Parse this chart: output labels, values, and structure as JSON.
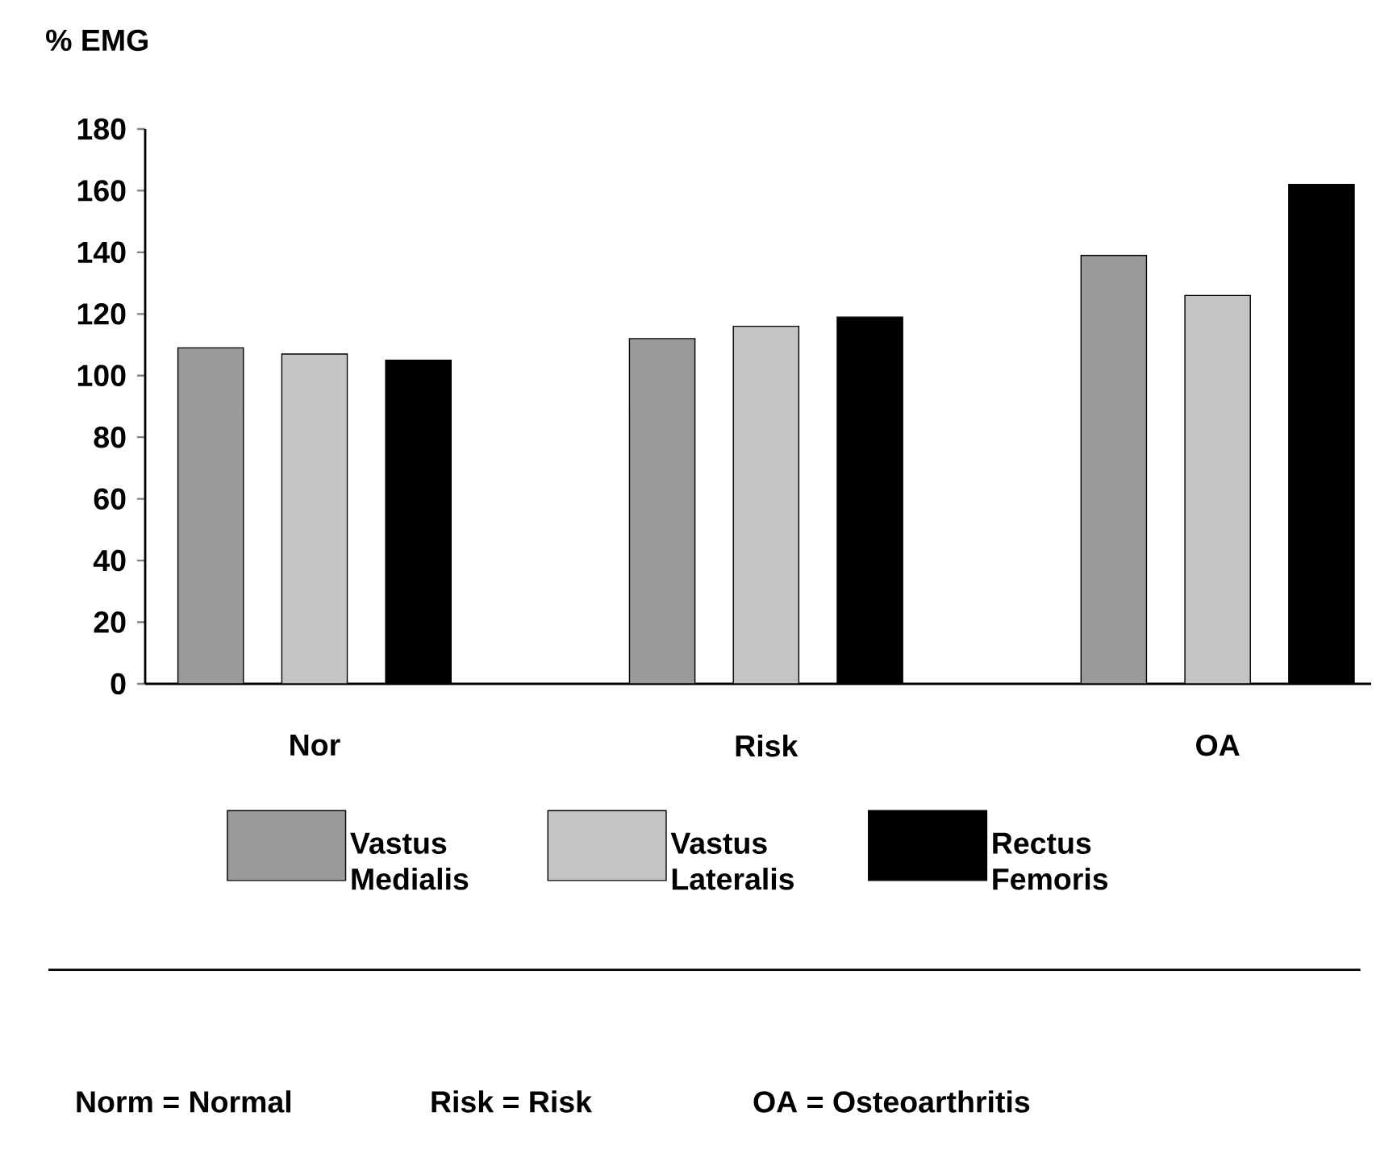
{
  "chart_data": {
    "type": "bar",
    "ylabel": "% EMG",
    "categories": [
      "Nor",
      "Risk",
      "OA"
    ],
    "series": [
      {
        "name": "Vastus Medialis",
        "color": "#9a9a9a",
        "values": [
          109,
          112,
          139
        ]
      },
      {
        "name": "Vastus Lateralis",
        "color": "#c4c4c4",
        "values": [
          107,
          116,
          126
        ]
      },
      {
        "name": "Rectus Femoris",
        "color": "#000000",
        "values": [
          105,
          119,
          162
        ]
      }
    ],
    "ylim": [
      0,
      180
    ],
    "yticks": [
      0,
      20,
      40,
      60,
      80,
      100,
      120,
      140,
      160,
      180
    ],
    "legend": "bottom",
    "annotations": [
      "Norm = Normal",
      "Risk = Risk",
      "OA = Osteoarthritis"
    ]
  }
}
